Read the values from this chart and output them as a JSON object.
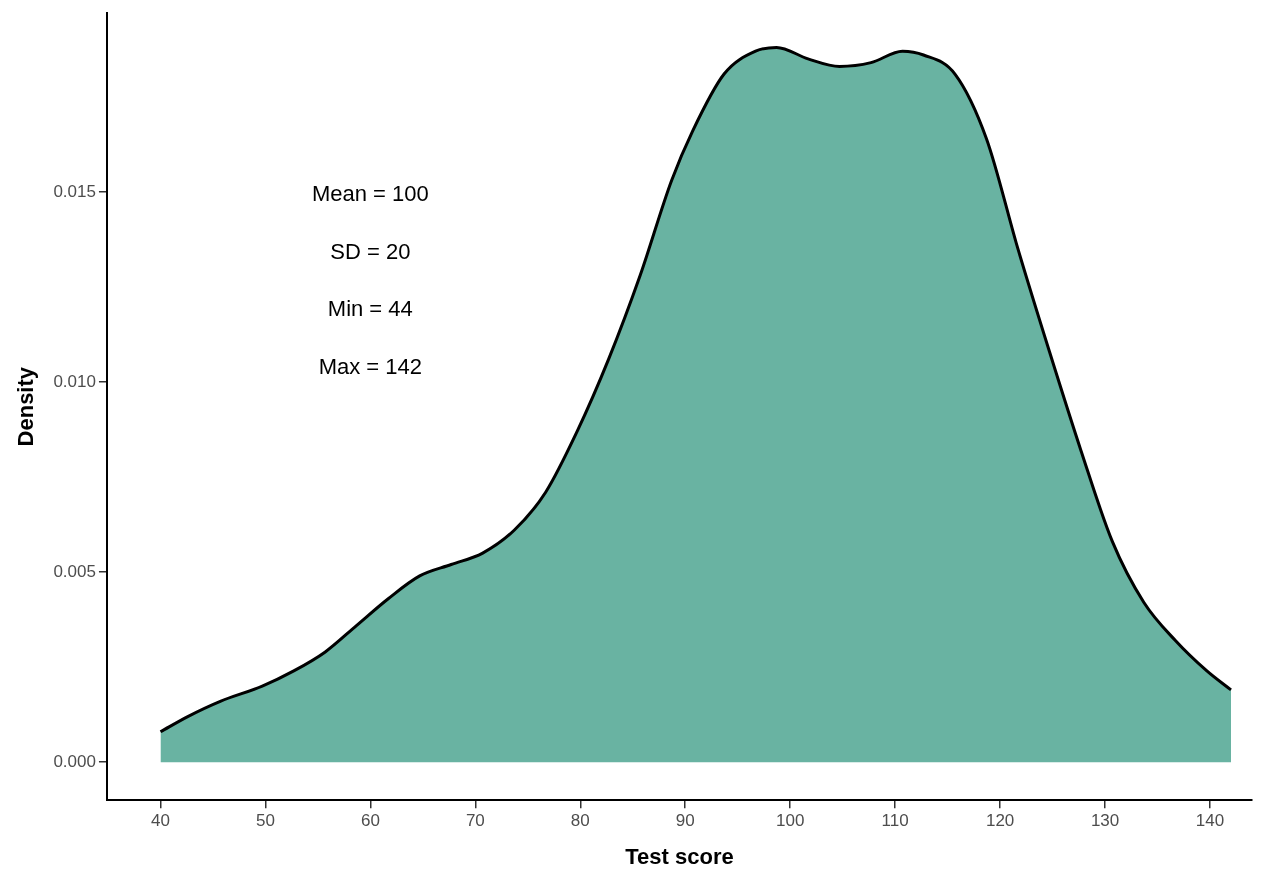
{
  "chart_data": {
    "type": "area",
    "xlabel": "Test score",
    "ylabel": "Density",
    "annotations": [
      "Mean = 100",
      "SD = 20",
      "Min = 44",
      "Max = 142"
    ],
    "series": [
      {
        "color": "#69b3a2",
        "x": [
          40,
          42.6,
          45.7,
          49.7,
          52.7,
          55.7,
          58.7,
          61.7,
          64.7,
          67.7,
          70.7,
          73.7,
          76.7,
          79.7,
          82.7,
          85.7,
          88.7,
          90.7,
          93.7,
          96.7,
          98.7,
          101.7,
          104.7,
          107.7,
          110.7,
          112.7,
          115.7,
          118.7,
          121.7,
          124.7,
          127.7,
          130.7,
          133.7,
          136.7,
          139.7,
          142
        ],
        "values": [
          0.0008,
          0.0012,
          0.0016,
          0.002,
          0.0024,
          0.0029,
          0.0036,
          0.0043,
          0.0049,
          0.0052,
          0.0055,
          0.0061,
          0.0071,
          0.0087,
          0.0106,
          0.0128,
          0.0153,
          0.0166,
          0.0181,
          0.0187,
          0.0188,
          0.0185,
          0.0183,
          0.0184,
          0.0187,
          0.0186,
          0.0181,
          0.0164,
          0.0135,
          0.0108,
          0.0082,
          0.0058,
          0.0042,
          0.0032,
          0.0024,
          0.0019
        ]
      }
    ],
    "xlim": [
      34.9,
      144
    ],
    "xticks": [
      40,
      50,
      60,
      70,
      80,
      90,
      100,
      110,
      120,
      130,
      140
    ],
    "ylim": [
      -0.001,
      0.0197
    ],
    "yticks": [
      {
        "value": 0,
        "label": "0.000"
      },
      {
        "value": 0.005,
        "label": "0.005"
      },
      {
        "value": 0.01,
        "label": "0.010"
      },
      {
        "value": 0.015,
        "label": "0.015"
      }
    ],
    "grid": false,
    "legend": false,
    "marker": "none",
    "line_style": "solid"
  }
}
